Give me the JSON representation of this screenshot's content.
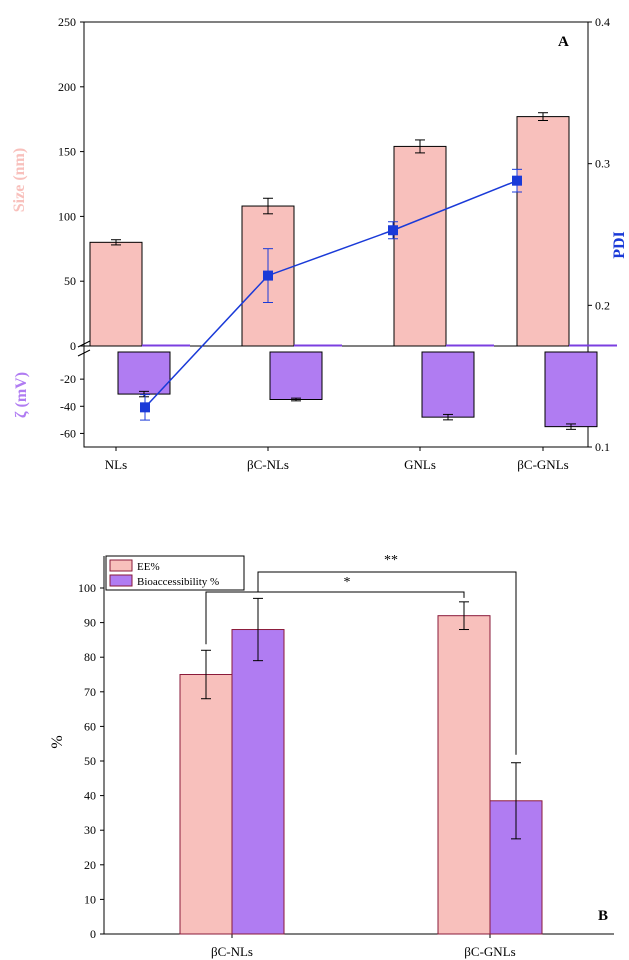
{
  "chart_data": [
    {
      "panel": "A",
      "type": "bar",
      "categories": [
        "NLs",
        "βC-NLs",
        "GNLs",
        "βC-GNLs"
      ],
      "size": {
        "ylabel": "Size (nm)",
        "ylim": [
          0,
          250
        ],
        "ticks": [
          0,
          50,
          100,
          150,
          200,
          250
        ],
        "values": [
          80,
          108,
          154,
          177
        ],
        "errors": [
          2,
          6,
          5,
          3
        ],
        "color": "#f8c0bc"
      },
      "zeta": {
        "ylabel": "ζ (mV)",
        "ylim": [
          -70,
          0
        ],
        "ticks": [
          -20,
          -40,
          -60
        ],
        "values": [
          -31,
          -35,
          -48,
          -55
        ],
        "errors": [
          2,
          1,
          2,
          2
        ],
        "color": "#b07cf2"
      },
      "pdi": {
        "ylabel": "PDI",
        "ylim": [
          0.1,
          0.4
        ],
        "ticks": [
          0.1,
          0.2,
          0.3,
          0.4
        ],
        "values": [
          0.128,
          0.221,
          0.253,
          0.288
        ],
        "errors": [
          0.009,
          0.019,
          0.006,
          0.008
        ],
        "color": "#1a3ad8"
      }
    },
    {
      "panel": "B",
      "type": "bar",
      "categories": [
        "βC-NLs",
        "βC-GNLs"
      ],
      "ylabel": "%",
      "ylim": [
        0,
        100
      ],
      "ticks": [
        0,
        10,
        20,
        30,
        40,
        50,
        60,
        70,
        80,
        90,
        100
      ],
      "series": [
        {
          "name": "EE%",
          "values": [
            75,
            92
          ],
          "errors": [
            7,
            4
          ],
          "color": "#f8c0bc"
        },
        {
          "name": "Bioaccessibility %",
          "values": [
            88,
            38.5
          ],
          "errors": [
            9,
            11
          ],
          "color": "#b07cf2"
        }
      ],
      "annotations": [
        "*",
        "**"
      ],
      "legend": "top-left"
    }
  ]
}
